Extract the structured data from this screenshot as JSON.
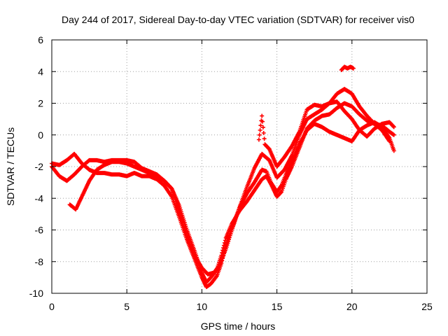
{
  "chart_data": {
    "type": "scatter",
    "title": "Day 244 of 2017, Sidereal Day-to-day VTEC variation (SDTVAR) for receiver vis0",
    "xlabel": "GPS time / hours",
    "ylabel": "SDTVAR / TECUs",
    "xlim": [
      0,
      25
    ],
    "ylim": [
      -10,
      6
    ],
    "xticks": [
      0,
      5,
      10,
      15,
      20,
      25
    ],
    "yticks": [
      -10,
      -8,
      -6,
      -4,
      -2,
      0,
      2,
      4,
      6
    ],
    "grid": true,
    "marker": "plus",
    "color": "#ff0000",
    "series": [
      {
        "x": [
          0.0,
          0.5,
          1.0,
          1.5,
          2.0,
          2.5,
          3.0,
          3.5,
          4.0,
          4.5,
          5.0,
          5.5,
          6.0,
          6.5,
          7.0,
          7.5,
          8.0,
          8.5,
          9.0,
          9.5,
          10.0,
          10.3,
          10.6,
          11.0,
          11.3,
          11.6,
          12.0,
          12.5,
          13.0,
          13.5,
          14.0,
          14.3,
          14.6,
          15.0,
          15.3,
          15.6,
          16.0,
          16.5,
          17.0,
          17.5,
          18.0,
          18.5,
          19.0,
          19.5,
          20.0,
          20.5,
          21.0,
          21.5,
          22.0,
          22.5,
          22.8
        ],
        "y": [
          -2.0,
          -2.6,
          -2.9,
          -2.5,
          -2.0,
          -1.6,
          -1.6,
          -1.7,
          -1.6,
          -1.6,
          -1.6,
          -1.7,
          -2.1,
          -2.3,
          -2.5,
          -2.9,
          -3.4,
          -4.5,
          -6.0,
          -7.3,
          -8.7,
          -9.3,
          -9.0,
          -8.5,
          -7.6,
          -6.5,
          -5.6,
          -4.8,
          -4.2,
          -3.5,
          -2.8,
          -2.6,
          -3.1,
          -3.9,
          -3.6,
          -2.8,
          -2.0,
          -0.8,
          0.4,
          0.9,
          1.2,
          1.3,
          1.7,
          2.0,
          1.8,
          1.3,
          0.9,
          0.7,
          0.6,
          0.2,
          0.0
        ]
      },
      {
        "x": [
          0.0,
          0.5,
          1.0,
          1.5,
          2.0,
          2.5,
          3.0,
          3.5,
          4.0,
          4.5,
          5.0,
          5.5,
          6.0,
          6.5,
          7.0,
          7.5,
          8.0,
          8.5,
          9.0,
          9.5,
          10.0,
          10.3,
          10.6,
          11.0,
          11.3,
          11.6,
          12.0,
          12.5,
          13.0,
          13.5,
          14.0,
          14.3,
          14.6,
          15.0,
          15.3,
          15.6,
          16.0,
          16.5,
          17.0,
          17.5,
          18.0,
          18.5,
          19.0,
          19.5,
          20.0,
          20.5,
          21.0,
          21.5,
          22.0,
          22.5,
          22.8
        ],
        "y": [
          -1.8,
          -1.9,
          -1.6,
          -1.2,
          -1.8,
          -2.2,
          -2.4,
          -2.4,
          -2.5,
          -2.5,
          -2.6,
          -2.4,
          -2.6,
          -2.6,
          -2.8,
          -3.2,
          -3.9,
          -5.2,
          -6.6,
          -7.8,
          -9.0,
          -9.6,
          -9.4,
          -8.9,
          -8.1,
          -7.0,
          -5.9,
          -4.6,
          -3.7,
          -3.0,
          -2.2,
          -2.3,
          -3.0,
          -3.6,
          -3.2,
          -2.5,
          -1.7,
          -0.6,
          0.3,
          0.7,
          0.5,
          0.2,
          0.0,
          -0.2,
          -0.4,
          0.3,
          0.6,
          0.8,
          0.5,
          -0.2,
          -1.0
        ]
      },
      {
        "x": [
          1.2,
          1.6,
          2.0,
          2.5,
          3.0,
          3.5,
          4.0,
          4.5,
          5.0,
          5.5,
          6.0,
          6.5,
          7.0,
          7.5,
          8.0,
          8.5,
          9.0,
          9.5,
          10.0,
          10.4,
          10.8,
          11.2,
          11.6,
          12.0,
          12.5,
          13.0,
          13.5,
          14.0,
          14.5,
          15.0,
          15.5,
          16.0,
          16.5,
          17.0,
          17.5,
          18.0,
          18.5,
          19.0,
          19.5,
          20.0,
          20.5,
          21.0,
          21.5,
          22.0,
          22.5
        ],
        "y": [
          -4.4,
          -4.7,
          -3.9,
          -2.9,
          -2.2,
          -1.9,
          -1.7,
          -1.7,
          -1.8,
          -2.0,
          -2.2,
          -2.4,
          -2.6,
          -2.9,
          -3.4,
          -4.9,
          -6.3,
          -7.6,
          -8.4,
          -8.8,
          -8.7,
          -8.2,
          -7.2,
          -6.0,
          -4.6,
          -3.3,
          -2.1,
          -1.2,
          -1.6,
          -2.7,
          -2.2,
          -1.3,
          0.0,
          1.0,
          1.3,
          1.6,
          2.0,
          2.6,
          2.9,
          2.6,
          1.8,
          1.2,
          0.7,
          0.3,
          -0.4
        ]
      },
      {
        "x": [
          13.8,
          14.0,
          14.2,
          14.5,
          15.0,
          15.5,
          16.0,
          16.5,
          17.0,
          17.5,
          18.0,
          18.5,
          19.0,
          19.5,
          20.0,
          20.5,
          21.0,
          21.5,
          22.0,
          22.5,
          22.8
        ],
        "y": [
          -0.3,
          1.2,
          -0.6,
          -0.9,
          -2.0,
          -1.4,
          -0.7,
          0.2,
          1.6,
          1.9,
          1.8,
          2.0,
          2.1,
          1.5,
          1.0,
          0.3,
          -0.1,
          0.4,
          0.7,
          0.8,
          0.5
        ]
      },
      {
        "x": [
          19.3,
          19.5,
          19.7,
          19.9,
          20.1
        ],
        "y": [
          4.1,
          4.3,
          4.2,
          4.3,
          4.2
        ]
      }
    ]
  }
}
